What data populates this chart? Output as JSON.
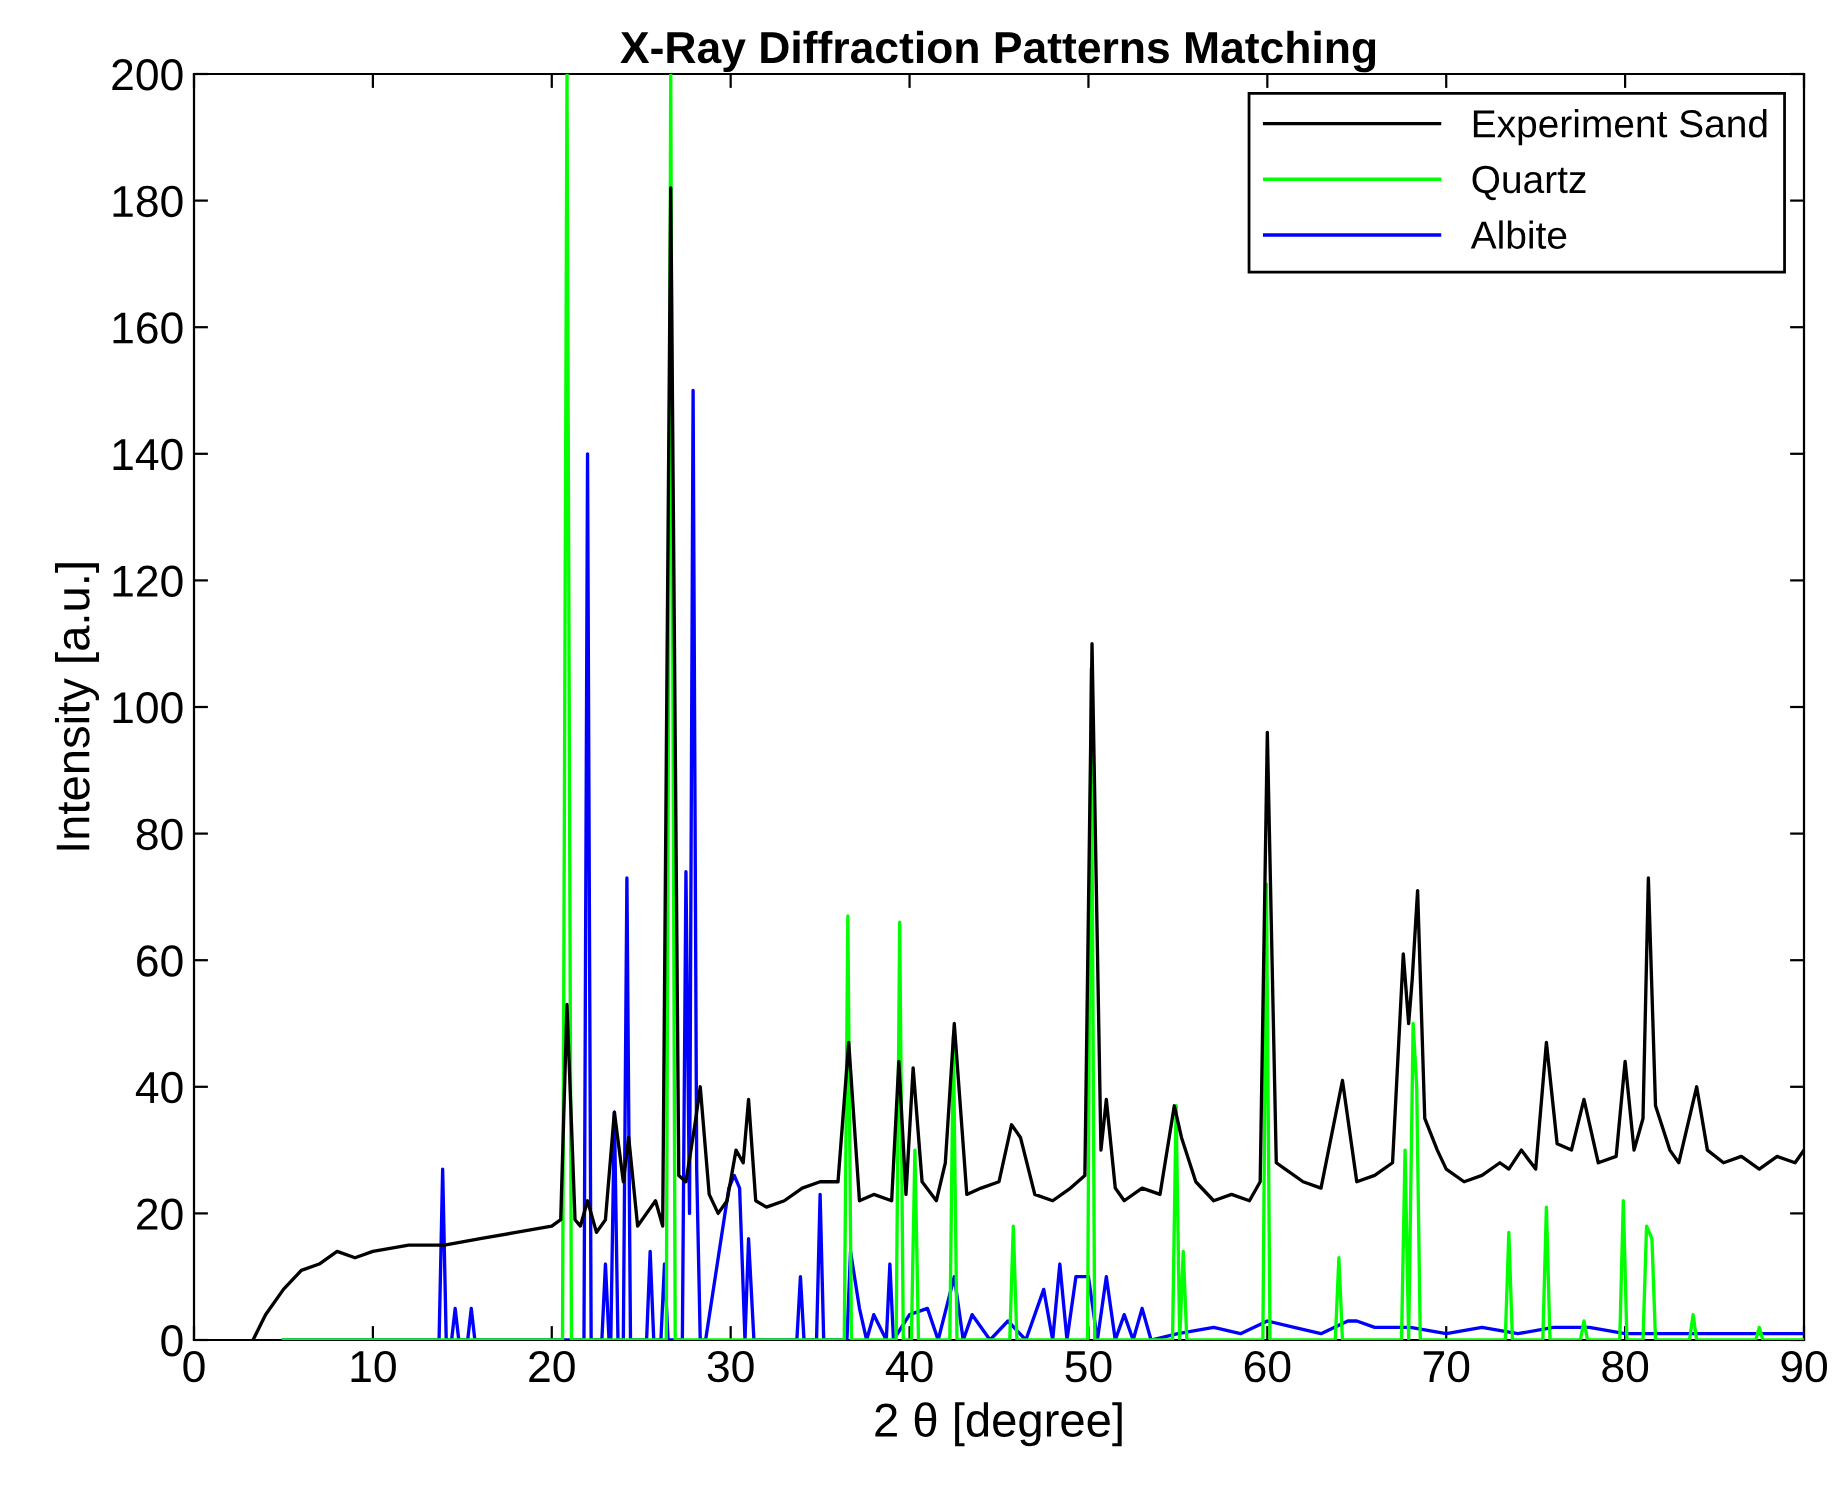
{
  "chart_data": {
    "type": "line",
    "title": "X-Ray Diffraction Patterns Matching",
    "xlabel": "2 θ [degree]",
    "ylabel": "Intensity [a.u.]",
    "xlim": [
      0,
      90
    ],
    "ylim": [
      0,
      200
    ],
    "xticks": [
      0,
      10,
      20,
      30,
      40,
      50,
      60,
      70,
      80,
      90
    ],
    "yticks": [
      0,
      20,
      40,
      60,
      80,
      100,
      120,
      140,
      160,
      180,
      200
    ],
    "grid": false,
    "legend": "top right",
    "marker": "none",
    "line_style": "solid",
    "series": [
      {
        "name": "Experiment Sand",
        "color": "#000000",
        "x": [
          3.3,
          4,
          5,
          6,
          7,
          8,
          9,
          10,
          12,
          14,
          16,
          18,
          20,
          20.5,
          20.85,
          21.3,
          21.6,
          22.0,
          22.5,
          23.0,
          23.5,
          24.0,
          24.3,
          24.8,
          25.3,
          25.8,
          26.2,
          26.65,
          27.1,
          27.5,
          28.0,
          28.3,
          28.8,
          29.3,
          29.8,
          30.3,
          30.7,
          31.0,
          31.4,
          32,
          33,
          34,
          35,
          36,
          36.6,
          37.2,
          38,
          39,
          39.4,
          39.8,
          40.2,
          40.7,
          41.5,
          42,
          42.5,
          43.2,
          44,
          45,
          45.7,
          46.2,
          47,
          48,
          49,
          49.8,
          50.2,
          50.7,
          51,
          51.5,
          52,
          53,
          54,
          54.8,
          55.2,
          56,
          57,
          58,
          59,
          59.6,
          60,
          60.5,
          61,
          62,
          63,
          64.2,
          65,
          66,
          67,
          67.6,
          67.9,
          68.1,
          68.4,
          68.8,
          69.5,
          70,
          71,
          72,
          73,
          73.5,
          74.2,
          75,
          75.6,
          76.2,
          77,
          77.7,
          78.5,
          79.5,
          80,
          80.5,
          81,
          81.3,
          81.7,
          82.5,
          83,
          84,
          84.6,
          85.5,
          86.5,
          87.5,
          88.5,
          89.5,
          90
        ],
        "values": [
          0,
          4,
          8,
          11,
          12,
          14,
          13,
          14,
          15,
          15,
          16,
          17,
          18,
          19,
          53,
          19,
          18,
          22,
          17,
          19,
          36,
          25,
          32,
          18,
          20,
          22,
          18,
          182,
          26,
          25,
          34,
          40,
          23,
          20,
          22,
          30,
          28,
          38,
          22,
          21,
          22,
          24,
          25,
          25,
          47,
          22,
          23,
          22,
          44,
          23,
          43,
          25,
          22,
          28,
          50,
          23,
          24,
          25,
          34,
          32,
          23,
          22,
          24,
          26,
          110,
          30,
          38,
          24,
          22,
          24,
          23,
          37,
          32,
          25,
          22,
          23,
          22,
          25,
          96,
          28,
          27,
          25,
          24,
          41,
          25,
          26,
          28,
          61,
          50,
          57,
          71,
          35,
          30,
          27,
          25,
          26,
          28,
          27,
          30,
          27,
          47,
          31,
          30,
          38,
          28,
          29,
          44,
          30,
          35,
          73,
          37,
          30,
          28,
          40,
          30,
          28,
          29,
          27,
          29,
          28,
          30
        ]
      },
      {
        "name": "Quartz",
        "color": "#00ff00",
        "x": [
          5,
          20.6,
          20.85,
          21.1,
          26.4,
          26.65,
          26.9,
          36.35,
          36.55,
          36.75,
          39.25,
          39.45,
          39.65,
          40.1,
          40.3,
          40.5,
          42.25,
          42.45,
          42.65,
          45.6,
          45.8,
          46.0,
          49.95,
          50.15,
          50.35,
          54.7,
          54.9,
          55.1,
          55.3,
          55.5,
          59.75,
          59.95,
          60.15,
          63.8,
          64.0,
          64.2,
          67.5,
          67.7,
          67.9,
          68.15,
          68.35,
          68.55,
          73.3,
          73.5,
          73.7,
          75.4,
          75.6,
          75.8,
          77.5,
          77.7,
          77.9,
          79.7,
          79.9,
          80.1,
          81.0,
          81.2,
          81.5,
          81.7,
          83.6,
          83.8,
          84.0,
          87.3,
          87.5,
          87.7,
          90
        ],
        "values": [
          0,
          0,
          200,
          0,
          0,
          200,
          0,
          0,
          67,
          0,
          0,
          66,
          0,
          0,
          30,
          0,
          0,
          48,
          0,
          0,
          18,
          0,
          0,
          106,
          0,
          0,
          37,
          0,
          14,
          0,
          0,
          72,
          0,
          0,
          13,
          0,
          0,
          30,
          0,
          50,
          40,
          0,
          0,
          17,
          0,
          0,
          21,
          0,
          0,
          3,
          0,
          0,
          22,
          0,
          0,
          18,
          16,
          0,
          0,
          4,
          0,
          0,
          2,
          0,
          0
        ]
      },
      {
        "name": "Albite",
        "color": "#0000ff",
        "x": [
          5,
          13.7,
          13.9,
          14.1,
          14.4,
          14.6,
          14.8,
          15.3,
          15.5,
          15.7,
          21.8,
          22.0,
          22.2,
          22.8,
          23.0,
          23.2,
          23.3,
          23.5,
          23.7,
          24.0,
          24.2,
          24.4,
          25.3,
          25.5,
          25.7,
          26.1,
          26.3,
          26.5,
          27.3,
          27.5,
          27.7,
          27.9,
          28.1,
          28.3,
          28.6,
          29.9,
          30.2,
          30.5,
          30.8,
          31.0,
          31.3,
          33.7,
          33.9,
          34.1,
          34.8,
          35.0,
          35.2,
          36.5,
          36.7,
          37.2,
          37.6,
          38.0,
          38.7,
          38.9,
          39.1,
          40.0,
          41.0,
          41.6,
          42.5,
          43.0,
          43.5,
          44.5,
          45.5,
          46.5,
          47.5,
          48.0,
          48.4,
          48.8,
          49.3,
          50.0,
          50.5,
          51.0,
          51.5,
          52.0,
          52.5,
          53.0,
          53.5,
          55,
          57,
          58.5,
          60,
          61.5,
          63,
          64.5,
          65,
          66,
          68,
          70,
          72,
          74,
          76,
          78,
          80,
          82,
          84,
          86,
          88,
          90
        ],
        "values": [
          0,
          0,
          27,
          0,
          0,
          5,
          0,
          0,
          5,
          0,
          0,
          140,
          0,
          0,
          12,
          0,
          0,
          36,
          0,
          0,
          73,
          0,
          0,
          14,
          0,
          0,
          12,
          0,
          0,
          74,
          20,
          150,
          27,
          0,
          0,
          24,
          26,
          24,
          0,
          16,
          0,
          0,
          10,
          0,
          0,
          23,
          0,
          0,
          14,
          5,
          0,
          4,
          0,
          12,
          0,
          4,
          5,
          0,
          10,
          0,
          4,
          0,
          3,
          0,
          8,
          0,
          12,
          0,
          10,
          10,
          0,
          10,
          0,
          4,
          0,
          5,
          0,
          1,
          2,
          1,
          3,
          2,
          1,
          3,
          3,
          2,
          2,
          1,
          2,
          1,
          2,
          2,
          1,
          1,
          1,
          1,
          1,
          1
        ]
      }
    ]
  }
}
